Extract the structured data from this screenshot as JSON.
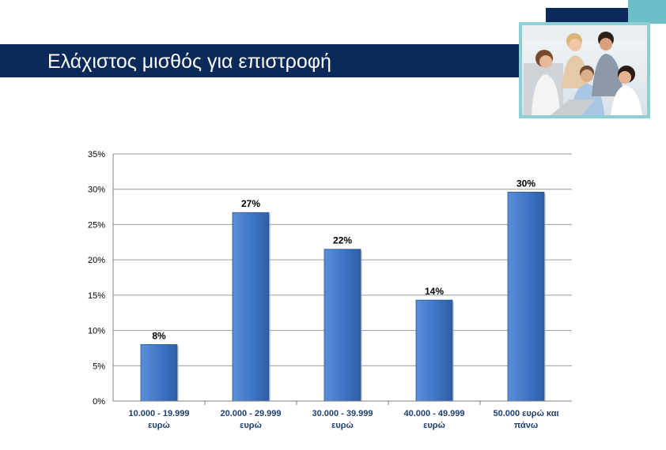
{
  "slide": {
    "title": "Ελάχιστος μισθός για επιστροφή",
    "photo_icon": "team-photo",
    "colors": {
      "banner": "#0b2a5a",
      "accent": "#6cbfc7",
      "bar": "#3f78c8",
      "axis_text": "#1f3e74"
    }
  },
  "chart_data": {
    "type": "bar",
    "categories": [
      [
        "10.000 - 19.999",
        "ευρώ"
      ],
      [
        "20.000 - 29.999",
        "ευρώ"
      ],
      [
        "30.000 - 39.999",
        "ευρώ"
      ],
      [
        "40.000 - 49.999",
        "ευρώ"
      ],
      [
        "50.000 ευρώ και",
        "πάνω"
      ]
    ],
    "values": [
      8,
      26.7,
      21.5,
      14.3,
      29.6
    ],
    "data_labels": [
      "8%",
      "27%",
      "22%",
      "14%",
      "30%"
    ],
    "ylim": [
      0,
      35
    ],
    "yticks": [
      0,
      5,
      10,
      15,
      20,
      25,
      30,
      35
    ],
    "ytick_labels": [
      "0%",
      "5%",
      "10%",
      "15%",
      "20%",
      "25%",
      "30%",
      "35%"
    ],
    "grid": true,
    "legend": "none"
  }
}
